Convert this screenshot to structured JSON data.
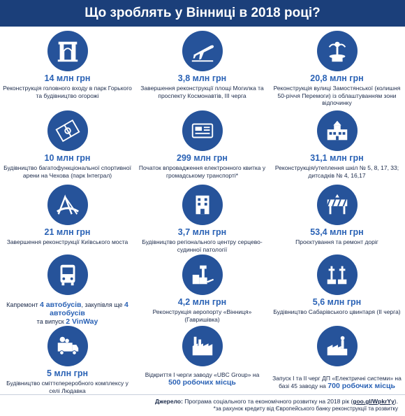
{
  "title": "Що зроблять у Вінниці в 2018 році?",
  "items": [
    {
      "amount": "14 млн грн",
      "desc": "Реконструкція головного входу в парк Горького та будівництво огорожі",
      "icon": "arch-icon"
    },
    {
      "amount": "3,8 млн грн",
      "desc": "Завершення реконструкції площі Могилка та проспекту Космонавтів, ІІІ черга",
      "icon": "airplane-icon"
    },
    {
      "amount": "20,8 млн грн",
      "desc": "Реконструкція вулиці Замостянської (колишня 50-річчя Перемоги) із облаштуванням зони відпочинку",
      "icon": "fountain-icon"
    },
    {
      "amount": "10 млн грн",
      "desc": "Будівництво багатофункціональної спортивної арени на Чехова (парк Інтеграл)",
      "icon": "football-field-icon"
    },
    {
      "amount": "299 млн грн",
      "desc": "Початок впровадження електронного квитка у громадському транспорті*",
      "icon": "ticket-icon"
    },
    {
      "amount": "31,1 млн грн",
      "desc": "Реконструкція/утеплення шкіл № 5, 8, 17, 33; дитсадків № 4, 16,17",
      "icon": "school-icon"
    },
    {
      "amount": "21 млн грн",
      "desc": "Завершення реконструкції Київського моста",
      "icon": "bridge-icon"
    },
    {
      "amount": "3,7 млн грн",
      "desc": "Будівництво регіонального центру серцево-судинної патології",
      "icon": "hospital-icon"
    },
    {
      "amount": "53,4 млн грн",
      "desc": "Проєктування та ремонт доріг",
      "icon": "road-barrier-icon"
    },
    {
      "amount": "",
      "desc_parts": [
        "Капремонт ",
        "4 автобусів",
        ", закупівля ще ",
        "4 автобусів",
        " та випуск ",
        "2 VinWay"
      ],
      "icon": "bus-icon"
    },
    {
      "amount": "4,2 млн грн",
      "desc": "Реконструкція аеропорту «Вінниця» (Гавришівка)",
      "icon": "airport-icon"
    },
    {
      "amount": "5,6 млн грн",
      "desc": "Будівництво Сабарівського цвинтаря (ІІ черга)",
      "icon": "cemetery-icon"
    },
    {
      "amount": "5 млн грн",
      "desc": "Будівництво сміттєпереробного комплексу у селі Людавка",
      "icon": "garbage-truck-icon"
    },
    {
      "amount": "",
      "desc_parts": [
        "Відкриття І черги заводу «UBC Group» на ",
        "500 робочих місць"
      ],
      "icon": "factory-icon"
    },
    {
      "amount": "",
      "desc_parts": [
        "Запуск І та ІІ черг ДП «Електричні системи» на базі 45 заводу на ",
        "700 робочих місць"
      ],
      "icon": "plant-icon"
    }
  ],
  "footer": {
    "source_label": "Джерело:",
    "source_text": " Програма соціального та економічного розвитку на 2018 рік (",
    "source_link": "goo.gl/WpkrYy",
    "source_end": ").",
    "note": "*за рахунок кредиту від Європейського банку реконструкції та розвитку"
  }
}
